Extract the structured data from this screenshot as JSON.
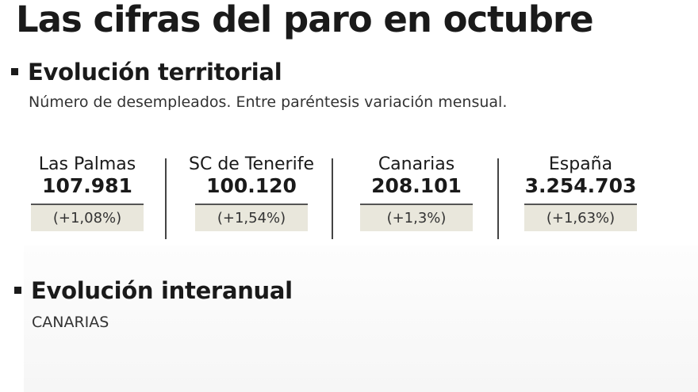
{
  "header": {
    "title": "Las cifras del paro en octubre"
  },
  "territorial": {
    "title": "Evolución territorial",
    "subtitle": "Número de desempleados. Entre paréntesis variación mensual.",
    "regions": [
      {
        "name": "Las Palmas",
        "value": "107.981",
        "change": "(+1,08%)"
      },
      {
        "name": "SC de Tenerife",
        "value": "100.120",
        "change": "(+1,54%)"
      },
      {
        "name": "Canarias",
        "value": "208.101",
        "change": "(+1,3%)"
      },
      {
        "name": "España",
        "value": "3.254.703",
        "change": "(+1,63%)"
      }
    ]
  },
  "interanual": {
    "title": "Evolución interanual",
    "subtitle": "CANARIAS"
  }
}
